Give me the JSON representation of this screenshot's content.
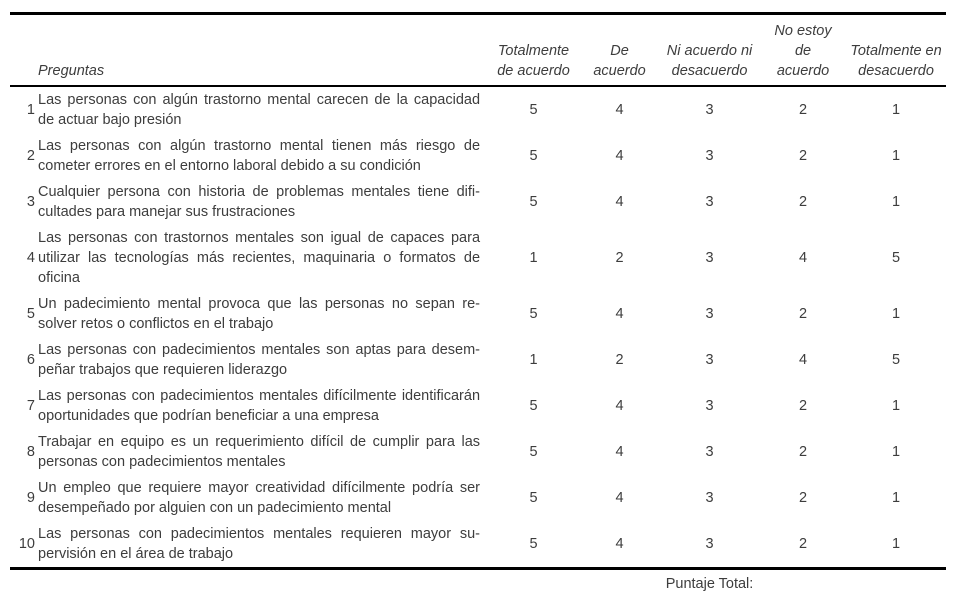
{
  "table": {
    "questions_header": "Preguntas",
    "columns": [
      "Totalmente de acuerdo",
      "De acuerdo",
      "Ni acuerdo ni desacuerdo",
      "No estoy de acuerdo",
      "Totalmente en desacuerdo"
    ],
    "rows": [
      {
        "num": "1",
        "text": "Las personas con algún trastorno mental carecen de la capacidad de actuar bajo presión",
        "values": [
          "5",
          "4",
          "3",
          "2",
          "1"
        ]
      },
      {
        "num": "2",
        "text": "Las personas con algún trastorno mental tienen más riesgo de cometer errores en el entorno laboral debido a su condición",
        "values": [
          "5",
          "4",
          "3",
          "2",
          "1"
        ]
      },
      {
        "num": "3",
        "text": "Cualquier persona con historia de problemas mentales tiene difi­cultades para manejar sus frustraciones",
        "values": [
          "5",
          "4",
          "3",
          "2",
          "1"
        ]
      },
      {
        "num": "4",
        "text": "Las personas con trastornos mentales son igual de capaces para utilizar las tecnologías más recientes, maquinaria o formatos de oficina",
        "values": [
          "1",
          "2",
          "3",
          "4",
          "5"
        ]
      },
      {
        "num": "5",
        "text": "Un padecimiento mental provoca que las personas no sepan re­solver retos o conflictos en el trabajo",
        "values": [
          "5",
          "4",
          "3",
          "2",
          "1"
        ]
      },
      {
        "num": "6",
        "text": "Las personas con padecimientos mentales son aptas para desem­peñar trabajos que requieren liderazgo",
        "values": [
          "1",
          "2",
          "3",
          "4",
          "5"
        ]
      },
      {
        "num": "7",
        "text": "Las personas con padecimientos mentales difícilmente identifi­carán oportunidades que podrían beneficiar a una empresa",
        "values": [
          "5",
          "4",
          "3",
          "2",
          "1"
        ]
      },
      {
        "num": "8",
        "text": "Trabajar en equipo es un requerimiento difícil de cumplir para las personas con padecimientos mentales",
        "values": [
          "5",
          "4",
          "3",
          "2",
          "1"
        ]
      },
      {
        "num": "9",
        "text": "Un empleo que requiere mayor creatividad difícilmente podría ser desempeñado por alguien con un padecimiento mental",
        "values": [
          "5",
          "4",
          "3",
          "2",
          "1"
        ]
      },
      {
        "num": "10",
        "text": "Las personas con padecimientos mentales requieren mayor su­pervisión en el área de trabajo",
        "values": [
          "5",
          "4",
          "3",
          "2",
          "1"
        ]
      }
    ],
    "footer_label": "Puntaje Total:"
  }
}
